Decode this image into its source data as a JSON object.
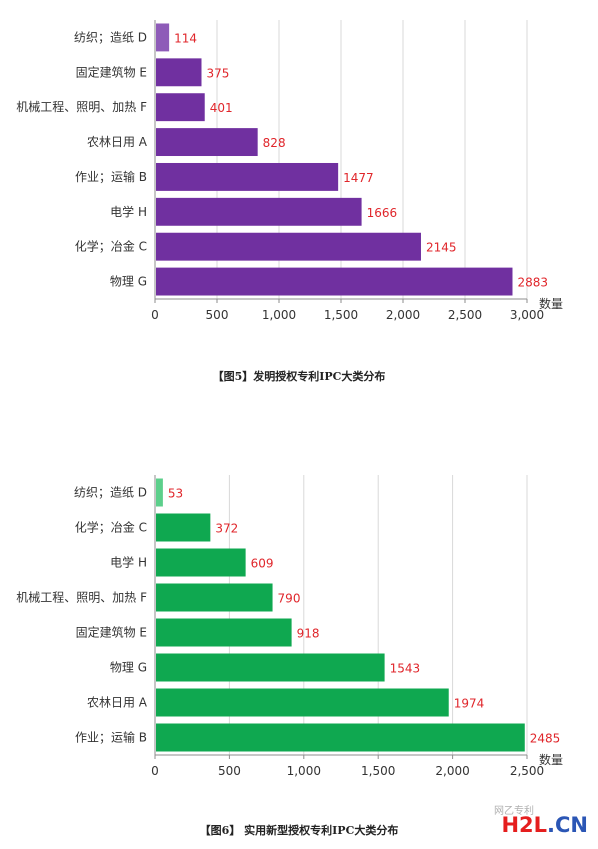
{
  "colors": {
    "chart1_bar": "#7030a0",
    "chart1_first_bar": "#8e5bb8",
    "chart2_bar": "#0fa850",
    "chart2_first_bar": "#5ccf8b",
    "value_label": "#e0262b"
  },
  "chart_data": [
    {
      "type": "bar",
      "orientation": "horizontal",
      "categories": [
        "纺织；造纸 D",
        "固定建筑物 E",
        "机械工程、照明、加热 F",
        "农林日用 A",
        "作业；运输 B",
        "电学 H",
        "化学；冶金 C",
        "物理 G"
      ],
      "values": [
        114,
        375,
        401,
        828,
        1477,
        1666,
        2145,
        2883
      ],
      "value_labels": [
        "114",
        "375",
        "401",
        "828",
        "1477",
        "1666",
        "2145",
        "2883"
      ],
      "xlim": [
        0,
        3000
      ],
      "xticks": [
        0,
        500,
        1000,
        1500,
        2000,
        2500,
        3000
      ],
      "xtick_labels": [
        "0",
        "500",
        "1,000",
        "1,500",
        "2,000",
        "2,500",
        "3,000"
      ],
      "xlabel": "数量",
      "grid": true,
      "caption": "【图5】发明授权专利IPC大类分布"
    },
    {
      "type": "bar",
      "orientation": "horizontal",
      "categories": [
        "纺织；造纸 D",
        "化学；冶金 C",
        "电学 H",
        "机械工程、照明、加热 F",
        "固定建筑物 E",
        "物理 G",
        "农林日用 A",
        "作业；运输 B"
      ],
      "values": [
        53,
        372,
        609,
        790,
        918,
        1543,
        1974,
        2485
      ],
      "value_labels": [
        "53",
        "372",
        "609",
        "790",
        "918",
        "1543",
        "1974",
        "2485"
      ],
      "xlim": [
        0,
        2500
      ],
      "xticks": [
        0,
        500,
        1000,
        1500,
        2000,
        2500
      ],
      "xtick_labels": [
        "0",
        "500",
        "1,000",
        "1,500",
        "2,000",
        "2,500"
      ],
      "xlabel": "数量",
      "grid": true,
      "caption": "【图6】 实用新型授权专利IPC大类分布"
    }
  ],
  "watermark": {
    "part1": "H2L",
    "part2": ".CN",
    "wechat_text": "网乙专利"
  }
}
